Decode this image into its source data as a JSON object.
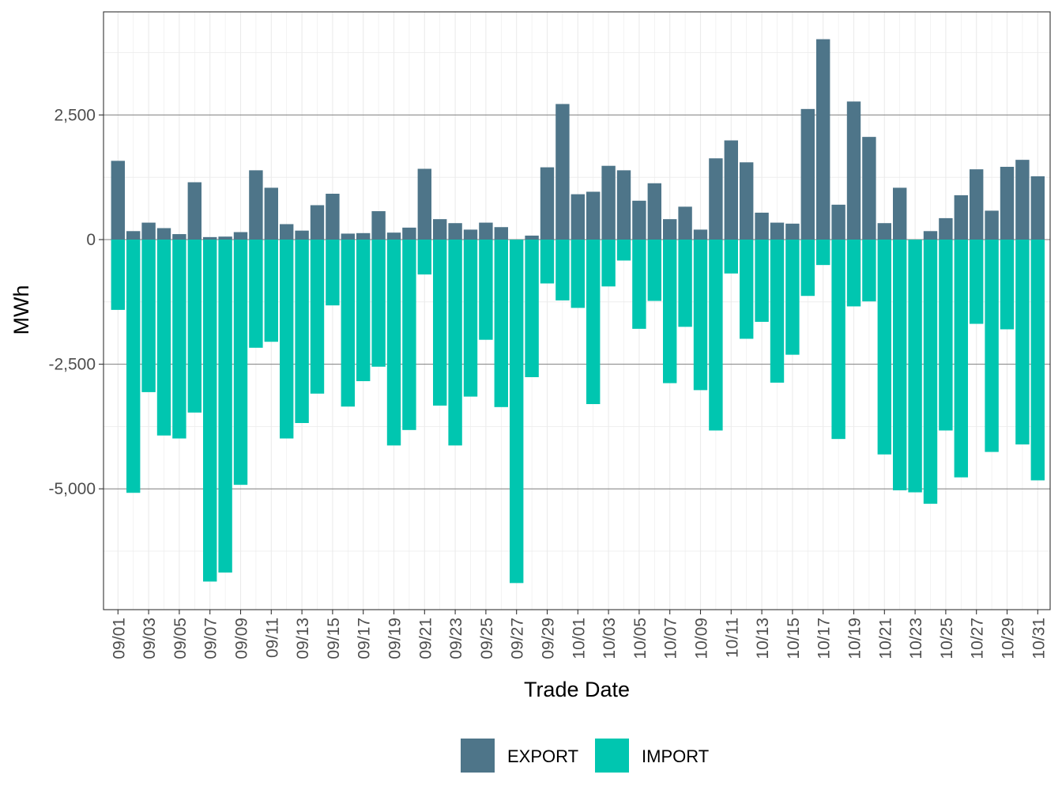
{
  "chart_data": {
    "type": "bar",
    "stacked": "diverging",
    "xlabel": "Trade Date",
    "ylabel": "MWh",
    "ylim": [
      -7500,
      4500
    ],
    "yticks": [
      -5000,
      -2500,
      0,
      2500
    ],
    "ytick_labels": [
      "-5,000",
      "-2,500",
      "0",
      "2,500"
    ],
    "minor_gridlines": [
      -6250,
      -3750,
      -1250,
      1250,
      3750
    ],
    "categories": [
      "09/01",
      "09/02",
      "09/03",
      "09/04",
      "09/05",
      "09/06",
      "09/07",
      "09/08",
      "09/09",
      "09/10",
      "09/11",
      "09/12",
      "09/13",
      "09/14",
      "09/15",
      "09/16",
      "09/17",
      "09/18",
      "09/19",
      "09/20",
      "09/21",
      "09/22",
      "09/23",
      "09/24",
      "09/25",
      "09/26",
      "09/27",
      "09/28",
      "09/29",
      "09/30",
      "10/01",
      "10/02",
      "10/03",
      "10/04",
      "10/05",
      "10/06",
      "10/07",
      "10/08",
      "10/09",
      "10/10",
      "10/11",
      "10/12",
      "10/13",
      "10/14",
      "10/15",
      "10/16",
      "10/17",
      "10/18",
      "10/19",
      "10/20",
      "10/21",
      "10/22",
      "10/23",
      "10/24",
      "10/25",
      "10/26",
      "10/27",
      "10/28",
      "10/29",
      "10/30",
      "10/31"
    ],
    "tick_labels": [
      "09/01",
      "09/03",
      "09/05",
      "09/07",
      "09/09",
      "09/11",
      "09/13",
      "09/15",
      "09/17",
      "09/19",
      "09/21",
      "09/23",
      "09/25",
      "09/27",
      "09/29",
      "10/01",
      "10/03",
      "10/05",
      "10/07",
      "10/09",
      "10/11",
      "10/13",
      "10/15",
      "10/17",
      "10/19",
      "10/21",
      "10/23",
      "10/25",
      "10/27",
      "10/29",
      "10/31"
    ],
    "series": [
      {
        "name": "EXPORT",
        "color": "#4E7589",
        "values": [
          1580,
          170,
          340,
          230,
          110,
          1150,
          50,
          60,
          150,
          1390,
          1040,
          310,
          180,
          690,
          920,
          120,
          130,
          570,
          140,
          240,
          1420,
          410,
          330,
          200,
          340,
          250,
          0,
          80,
          1450,
          2720,
          910,
          960,
          1480,
          1390,
          780,
          1130,
          410,
          660,
          200,
          1630,
          1990,
          1550,
          540,
          340,
          320,
          2620,
          4020,
          700,
          2770,
          2060,
          330,
          1040,
          0,
          170,
          430,
          890,
          1410,
          580,
          1460,
          1600,
          1270
        ]
      },
      {
        "name": "IMPORT",
        "color": "#00C6B0",
        "values": [
          -1410,
          -5080,
          -3060,
          -3930,
          -3990,
          -3470,
          -6860,
          -6680,
          -4920,
          -2170,
          -2050,
          -3990,
          -3680,
          -3090,
          -1320,
          -3350,
          -2840,
          -2550,
          -4130,
          -3820,
          -700,
          -3330,
          -4130,
          -3150,
          -2010,
          -3360,
          -6890,
          -2760,
          -880,
          -1220,
          -1370,
          -3300,
          -940,
          -420,
          -1790,
          -1230,
          -2880,
          -1750,
          -3020,
          -3830,
          -680,
          -1990,
          -1650,
          -2870,
          -2310,
          -1130,
          -510,
          -4000,
          -1340,
          -1240,
          -4310,
          -5030,
          -5070,
          -5300,
          -3830,
          -4770,
          -1690,
          -4260,
          -1800,
          -4110,
          -4830
        ]
      }
    ],
    "legend": {
      "position": "bottom",
      "items": [
        "EXPORT",
        "IMPORT"
      ]
    }
  }
}
